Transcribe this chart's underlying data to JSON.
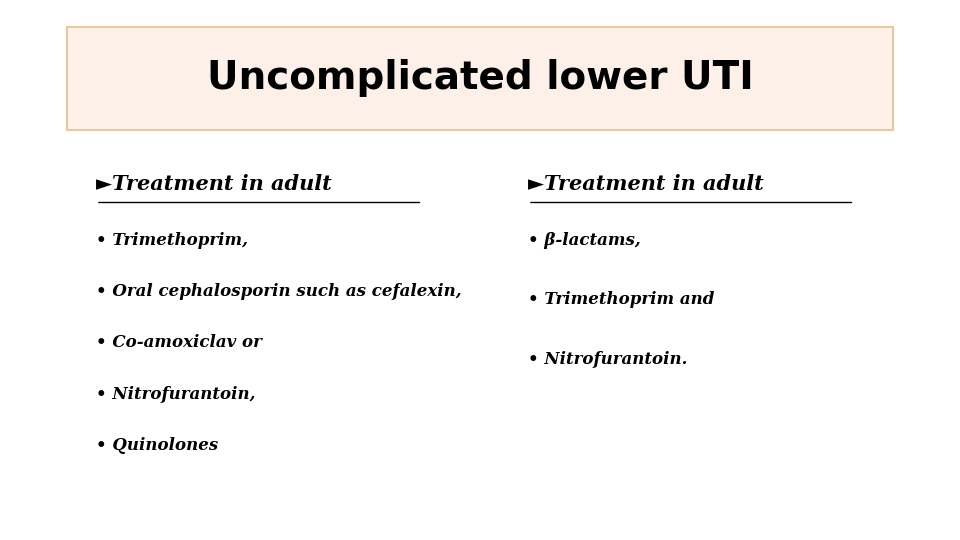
{
  "title": "Uncomplicated lower UTI",
  "title_box_facecolor": "#fdf0e8",
  "title_box_edgecolor": "#e8c8a0",
  "background_color": "#ffffff",
  "left_heading": "►Treatment in adult",
  "left_items": [
    "Trimethoprim,",
    "Oral cephalosporin such as cefalexin,",
    "Co-amoxiclav or",
    "Nitrofurantoin,",
    "Quinolones"
  ],
  "right_heading": "►Treatment in adult",
  "right_items": [
    "β-lactams,",
    "Trimethoprim and",
    "Nitrofurantoin."
  ]
}
